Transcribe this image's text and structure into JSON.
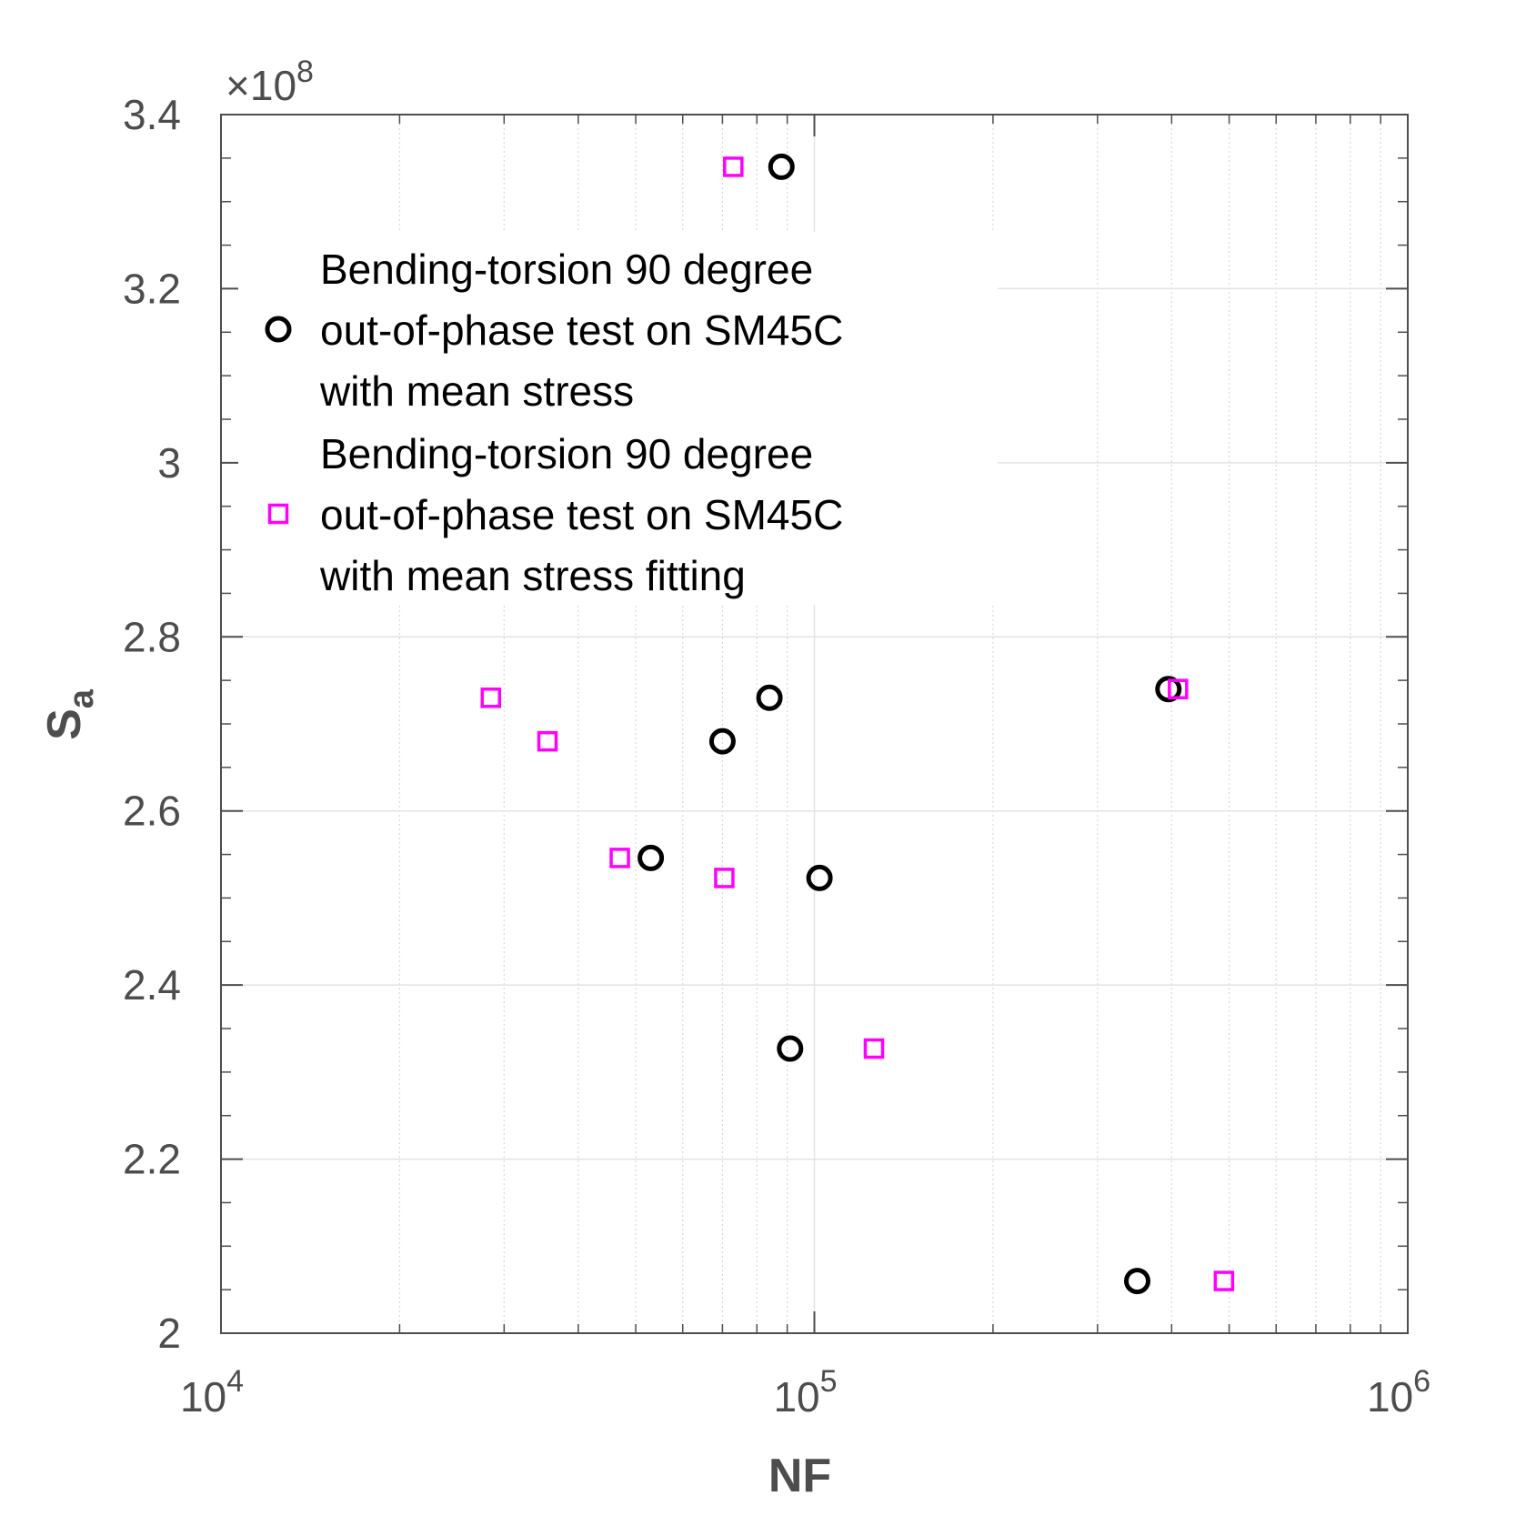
{
  "chart_data": {
    "type": "scatter",
    "x_scale": "log",
    "xlim": [
      10000,
      1000000
    ],
    "ylim": [
      200000000,
      340000000
    ],
    "xlabel": "NF",
    "ylabel_main": "S",
    "ylabel_sub": "a",
    "x_ticks": [
      {
        "base": "10",
        "exp": "4",
        "value": 10000
      },
      {
        "base": "10",
        "exp": "5",
        "value": 100000
      },
      {
        "base": "10",
        "exp": "6",
        "value": 1000000
      }
    ],
    "y_ticks": [
      {
        "label": "2",
        "value": 200000000
      },
      {
        "label": "2.2",
        "value": 220000000
      },
      {
        "label": "2.4",
        "value": 240000000
      },
      {
        "label": "2.6",
        "value": 260000000
      },
      {
        "label": "2.8",
        "value": 280000000
      },
      {
        "label": "3",
        "value": 300000000
      },
      {
        "label": "3.2",
        "value": 320000000
      },
      {
        "label": "3.4",
        "value": 340000000
      }
    ],
    "y_multiplier": {
      "prefix": "×10",
      "exp": "8"
    },
    "grid": true,
    "legend_position": "top-left",
    "series": [
      {
        "name_lines": [
          "Bending-torsion 90 degree",
          "out-of-phase test on SM45C",
          "with mean stress"
        ],
        "marker": "circle",
        "color": "#000000",
        "points": [
          {
            "x": 88000,
            "y": 334000000
          },
          {
            "x": 84000,
            "y": 273000000
          },
          {
            "x": 70000,
            "y": 268000000
          },
          {
            "x": 53000,
            "y": 254600000
          },
          {
            "x": 102000,
            "y": 252300000
          },
          {
            "x": 91000,
            "y": 232700000
          },
          {
            "x": 395000,
            "y": 274000000
          },
          {
            "x": 350000,
            "y": 206000000
          }
        ]
      },
      {
        "name_lines": [
          "Bending-torsion 90 degree",
          "out-of-phase test on SM45C",
          "with mean stress fitting"
        ],
        "marker": "square",
        "color": "#ff00ff",
        "points": [
          {
            "x": 73000,
            "y": 334000000
          },
          {
            "x": 28500,
            "y": 273000000
          },
          {
            "x": 35500,
            "y": 268000000
          },
          {
            "x": 47000,
            "y": 254600000
          },
          {
            "x": 70500,
            "y": 252300000
          },
          {
            "x": 126000,
            "y": 232700000
          },
          {
            "x": 410000,
            "y": 274000000
          },
          {
            "x": 490000,
            "y": 206000000
          }
        ]
      }
    ]
  }
}
